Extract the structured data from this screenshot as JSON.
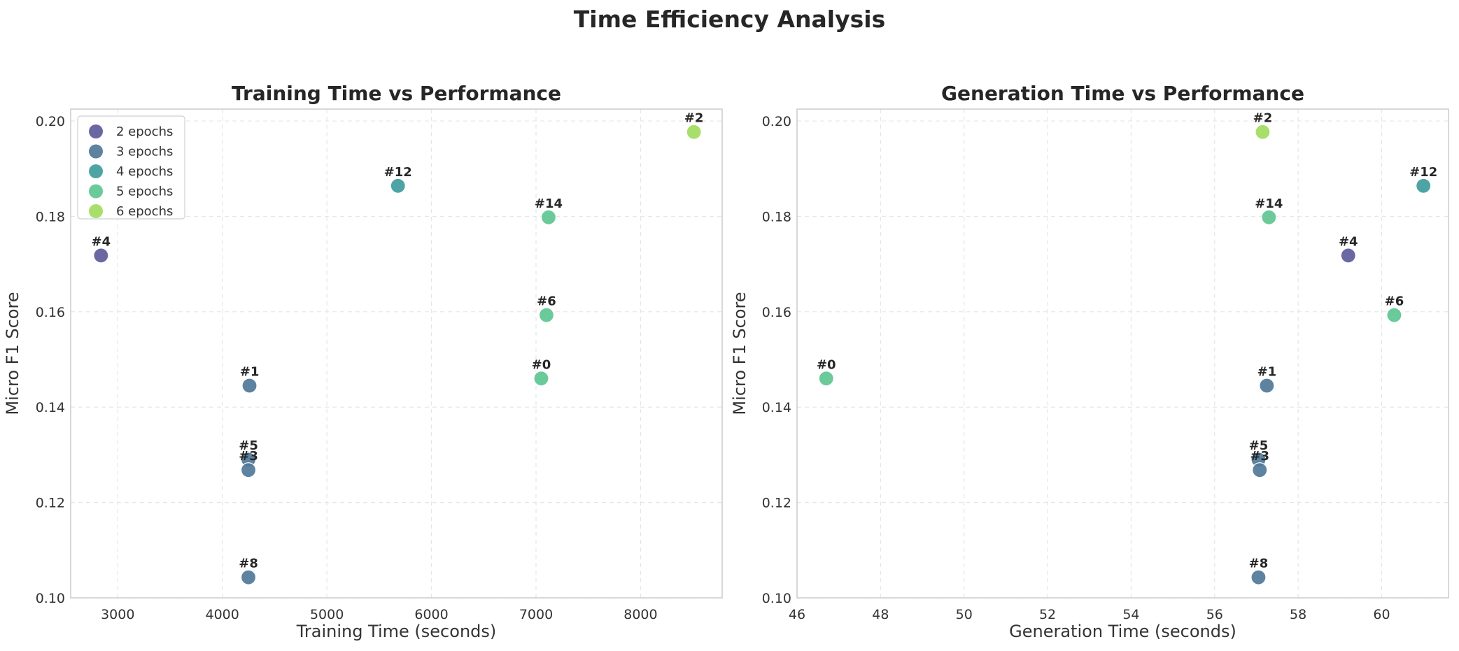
{
  "suptitle": "Time Efficiency Analysis",
  "legend": [
    {
      "label": "2 epochs",
      "color": "#5e5a9a"
    },
    {
      "label": "3 epochs",
      "color": "#4f7898"
    },
    {
      "label": "4 epochs",
      "color": "#3f9c9c"
    },
    {
      "label": "5 epochs",
      "color": "#5ec690"
    },
    {
      "label": "6 epochs",
      "color": "#a1dc60"
    }
  ],
  "chart_data": [
    {
      "type": "scatter",
      "title": "Training Time vs Performance",
      "xlabel": "Training Time (seconds)",
      "ylabel": "Micro F1 Score",
      "xlim": [
        2550,
        8780
      ],
      "ylim": [
        0.1,
        0.2025
      ],
      "xticks": [
        3000,
        4000,
        5000,
        6000,
        7000,
        8000
      ],
      "yticks": [
        0.1,
        0.12,
        0.14,
        0.16,
        0.18,
        0.2
      ],
      "grid": true,
      "legend_position": "top-left",
      "points": [
        {
          "label": "#4",
          "x": 2840,
          "y": 0.1718,
          "epochs": 2
        },
        {
          "label": "#1",
          "x": 4260,
          "y": 0.1445,
          "epochs": 3
        },
        {
          "label": "#5",
          "x": 4250,
          "y": 0.129,
          "epochs": 3
        },
        {
          "label": "#3",
          "x": 4250,
          "y": 0.1268,
          "epochs": 3
        },
        {
          "label": "#8",
          "x": 4250,
          "y": 0.1043,
          "epochs": 3
        },
        {
          "label": "#12",
          "x": 5680,
          "y": 0.1864,
          "epochs": 4
        },
        {
          "label": "#14",
          "x": 7120,
          "y": 0.1798,
          "epochs": 5
        },
        {
          "label": "#6",
          "x": 7100,
          "y": 0.1593,
          "epochs": 5
        },
        {
          "label": "#0",
          "x": 7050,
          "y": 0.146,
          "epochs": 5
        },
        {
          "label": "#2",
          "x": 8510,
          "y": 0.1977,
          "epochs": 6
        }
      ]
    },
    {
      "type": "scatter",
      "title": "Generation Time vs Performance",
      "xlabel": "Generation Time (seconds)",
      "ylabel": "Micro F1 Score",
      "xlim": [
        46.0,
        61.6
      ],
      "ylim": [
        0.1,
        0.2025
      ],
      "xticks": [
        46,
        48,
        50,
        52,
        54,
        56,
        58,
        60
      ],
      "yticks": [
        0.1,
        0.12,
        0.14,
        0.16,
        0.18,
        0.2
      ],
      "grid": true,
      "points": [
        {
          "label": "#0",
          "x": 46.7,
          "y": 0.146,
          "epochs": 5
        },
        {
          "label": "#2",
          "x": 57.15,
          "y": 0.1977,
          "epochs": 6
        },
        {
          "label": "#14",
          "x": 57.3,
          "y": 0.1798,
          "epochs": 5
        },
        {
          "label": "#1",
          "x": 57.25,
          "y": 0.1445,
          "epochs": 3
        },
        {
          "label": "#5",
          "x": 57.05,
          "y": 0.129,
          "epochs": 3
        },
        {
          "label": "#3",
          "x": 57.08,
          "y": 0.1268,
          "epochs": 3
        },
        {
          "label": "#8",
          "x": 57.05,
          "y": 0.1043,
          "epochs": 3
        },
        {
          "label": "#4",
          "x": 59.2,
          "y": 0.1718,
          "epochs": 2
        },
        {
          "label": "#6",
          "x": 60.3,
          "y": 0.1593,
          "epochs": 5
        },
        {
          "label": "#12",
          "x": 61.0,
          "y": 0.1864,
          "epochs": 4
        }
      ]
    }
  ]
}
